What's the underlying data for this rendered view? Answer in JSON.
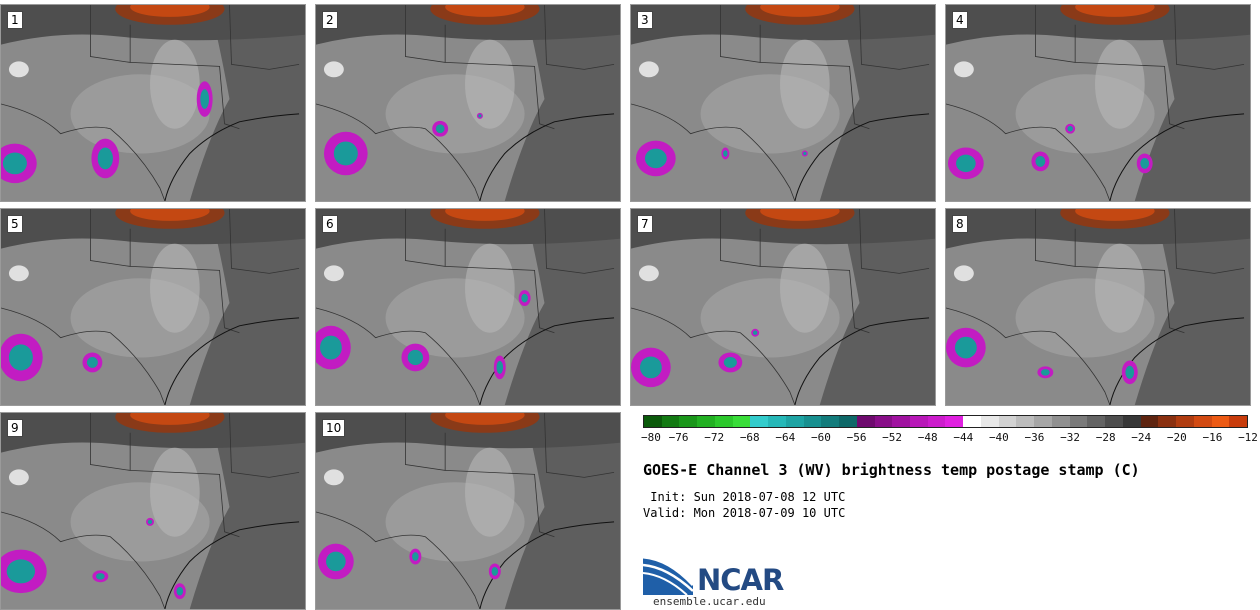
{
  "panels": [
    {
      "label": "1"
    },
    {
      "label": "2"
    },
    {
      "label": "3"
    },
    {
      "label": "4"
    },
    {
      "label": "5"
    },
    {
      "label": "6"
    },
    {
      "label": "7"
    },
    {
      "label": "8"
    },
    {
      "label": "9"
    },
    {
      "label": "10"
    }
  ],
  "colorbar": {
    "colors": [
      "#0b5a0b",
      "#137a13",
      "#1a961a",
      "#22b022",
      "#2cc82c",
      "#39dd39",
      "#33cccc",
      "#26b8b8",
      "#1ea4a4",
      "#189090",
      "#137c7c",
      "#0e6868",
      "#6e0a6e",
      "#880e88",
      "#a012a0",
      "#b818b8",
      "#cc1ccc",
      "#e020e0",
      "#ffffff",
      "#e8e8e8",
      "#d2d2d2",
      "#bcbcbc",
      "#a6a6a6",
      "#909090",
      "#7a7a7a",
      "#646464",
      "#4e4e4e",
      "#383838",
      "#5e2410",
      "#8a3010",
      "#b03c10",
      "#d24a12",
      "#ec5a14",
      "#c83c0c"
    ],
    "tick_labels": [
      "−80",
      "−76",
      "−72",
      "−68",
      "−64",
      "−60",
      "−56",
      "−52",
      "−48",
      "−44",
      "−40",
      "−36",
      "−32",
      "−28",
      "−24",
      "−20",
      "−16",
      "−12"
    ]
  },
  "title": "GOES-E Channel 3 (WV) brightness temp postage stamp (C)",
  "init": " Init: Sun 2018-07-08 12 UTC",
  "valid": "Valid: Mon 2018-07-09 10 UTC",
  "logo": {
    "text": "NCAR",
    "url": "ensemble.ucar.edu",
    "color": "#234a83"
  }
}
